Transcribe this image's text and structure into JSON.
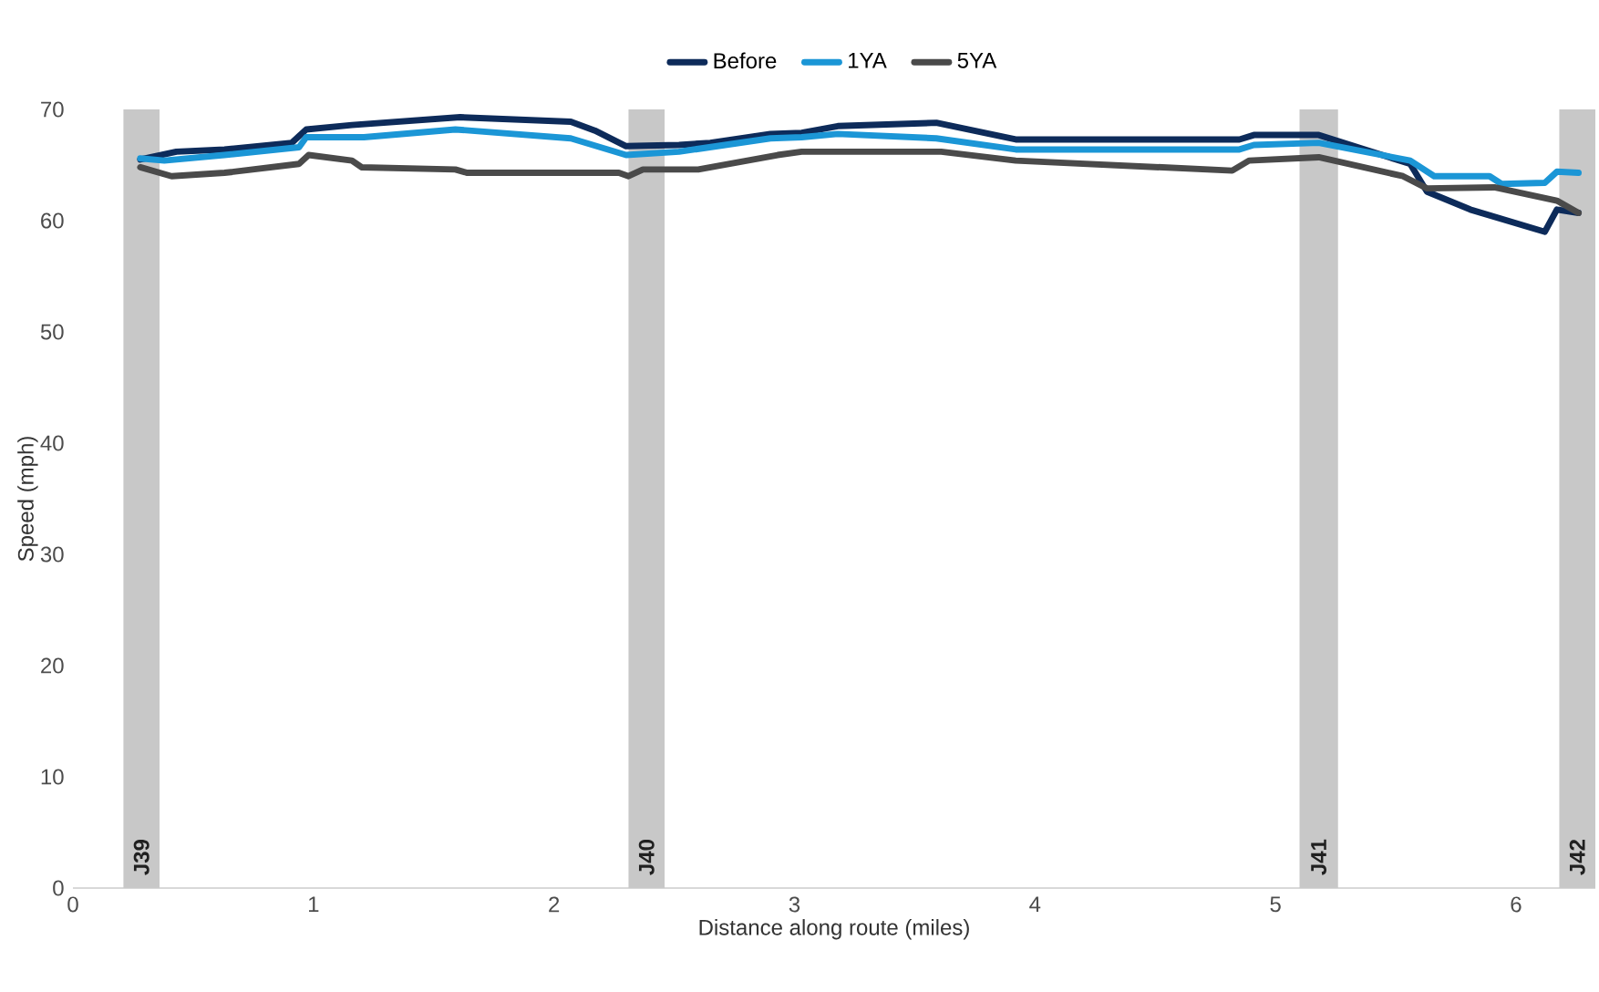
{
  "chart_data": {
    "type": "line",
    "xlabel": "Distance along route (miles)",
    "ylabel": "Speed (mph)",
    "xlim": [
      0,
      6.33
    ],
    "xticks": [
      0,
      1,
      2,
      3,
      4,
      5,
      6
    ],
    "ylim": [
      0,
      70
    ],
    "yticks": [
      0,
      10,
      20,
      30,
      40,
      50,
      60,
      70
    ],
    "grid": false,
    "legend": "top",
    "series": [
      {
        "name": "Before",
        "color": "#0d2b5a",
        "x": [
          0.28,
          0.43,
          0.63,
          0.91,
          0.97,
          1.16,
          1.61,
          2.07,
          2.17,
          2.3,
          2.52,
          2.65,
          2.9,
          3.03,
          3.18,
          3.59,
          3.92,
          4.85,
          4.91,
          5.18,
          5.56,
          5.63,
          5.81,
          6.12,
          6.17,
          6.26
        ],
        "values": [
          65.5,
          66.2,
          66.4,
          67.0,
          68.2,
          68.6,
          69.3,
          68.9,
          68.1,
          66.7,
          66.8,
          67.0,
          67.8,
          67.9,
          68.5,
          68.8,
          67.3,
          67.3,
          67.7,
          67.7,
          65.1,
          62.6,
          61.0,
          59.0,
          61.0,
          60.7
        ]
      },
      {
        "name": "1YA",
        "color": "#1b96d6",
        "x": [
          0.28,
          0.38,
          0.63,
          0.94,
          0.97,
          1.21,
          1.59,
          2.07,
          2.3,
          2.52,
          2.9,
          3.03,
          3.18,
          3.59,
          3.92,
          4.85,
          4.91,
          5.18,
          5.56,
          5.66,
          5.89,
          5.94,
          6.12,
          6.17,
          6.26
        ],
        "values": [
          65.6,
          65.4,
          65.9,
          66.6,
          67.5,
          67.5,
          68.2,
          67.4,
          65.9,
          66.2,
          67.4,
          67.5,
          67.8,
          67.4,
          66.4,
          66.4,
          66.8,
          67.0,
          65.4,
          64.0,
          64.0,
          63.3,
          63.4,
          64.4,
          64.3
        ]
      },
      {
        "name": "5YA",
        "color": "#4a4a4a",
        "x": [
          0.28,
          0.41,
          0.63,
          0.94,
          0.98,
          1.16,
          1.2,
          1.59,
          1.64,
          2.27,
          2.31,
          2.37,
          2.6,
          2.93,
          3.03,
          3.18,
          3.61,
          3.92,
          4.82,
          4.89,
          5.18,
          5.53,
          5.63,
          5.91,
          6.17,
          6.26
        ],
        "values": [
          64.8,
          64.0,
          64.3,
          65.1,
          65.9,
          65.4,
          64.8,
          64.6,
          64.3,
          64.3,
          64.0,
          64.6,
          64.6,
          65.9,
          66.2,
          66.2,
          66.2,
          65.4,
          64.5,
          65.4,
          65.7,
          64.0,
          62.9,
          63.0,
          61.8,
          60.7
        ]
      }
    ],
    "bands": [
      {
        "axis": "x",
        "from": 0.21,
        "to": 0.36,
        "label": "J39",
        "color": "#c8c8c8"
      },
      {
        "axis": "x",
        "from": 2.31,
        "to": 2.46,
        "label": "J40",
        "color": "#c8c8c8"
      },
      {
        "axis": "x",
        "from": 5.1,
        "to": 5.26,
        "label": "J41",
        "color": "#c8c8c8"
      },
      {
        "axis": "x",
        "from": 6.18,
        "to": 6.33,
        "label": "J42",
        "color": "#c8c8c8"
      }
    ]
  }
}
